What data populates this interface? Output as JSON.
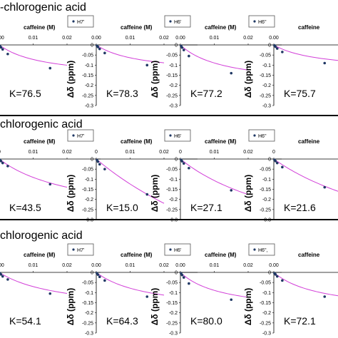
{
  "sections": [
    {
      "title": "-chlorogenic acid"
    },
    {
      "title": "chlorogenic acid"
    },
    {
      "title": "chlorogenic acid"
    }
  ],
  "chart_data": [
    {
      "type": "scatter",
      "section": 0,
      "xlabel": "caffeine (M)",
      "ylabel": "",
      "legend": "H7'",
      "k_label": "K=76.5",
      "xticks": [
        "0.00",
        "0.01",
        "0.02"
      ],
      "yticks": [
        "0",
        "-0.05",
        "-0.1",
        "-0.15",
        "-0.2",
        "-0.25",
        "-0.3"
      ],
      "xlim": [
        0,
        0.02
      ],
      "ylim": [
        -0.3,
        0
      ],
      "points": [
        {
          "x": 0.0002,
          "y": -0.005
        },
        {
          "x": 0.0005,
          "y": -0.012
        },
        {
          "x": 0.001,
          "y": -0.022
        },
        {
          "x": 0.0025,
          "y": -0.045
        },
        {
          "x": 0.015,
          "y": -0.115
        }
      ],
      "fit": {
        "dmax": -0.166,
        "k": 76.5
      }
    },
    {
      "type": "scatter",
      "section": 0,
      "xlabel": "caffeine (M)",
      "ylabel": "Δδ (ppm)",
      "legend": "H6'",
      "k_label": "K=78.3",
      "xticks": [
        "0.00",
        "0.01",
        "0.02"
      ],
      "yticks": [
        "0",
        "-0.05",
        "-0.1",
        "-0.15",
        "-0.2",
        "-0.25",
        "-0.3"
      ],
      "xlim": [
        0,
        0.02
      ],
      "ylim": [
        -0.3,
        0
      ],
      "points": [
        {
          "x": 0.0002,
          "y": -0.004
        },
        {
          "x": 0.0005,
          "y": -0.01
        },
        {
          "x": 0.001,
          "y": -0.02
        },
        {
          "x": 0.0025,
          "y": -0.04
        },
        {
          "x": 0.015,
          "y": -0.1
        }
      ],
      "fit": {
        "dmax": -0.145,
        "k": 78.3
      }
    },
    {
      "type": "scatter",
      "section": 0,
      "xlabel": "caffeine (M)",
      "ylabel": "Δδ (ppm)",
      "legend": "H6''",
      "k_label": "K=77.2",
      "xticks": [
        "0.00",
        "0.01",
        "0.02"
      ],
      "yticks": [
        "0",
        "-0.05",
        "-0.1",
        "-0.15",
        "-0.2",
        "-0.25",
        "-0.3"
      ],
      "xlim": [
        0,
        0.02
      ],
      "ylim": [
        -0.3,
        0
      ],
      "points": [
        {
          "x": 0.0002,
          "y": -0.005
        },
        {
          "x": 0.0005,
          "y": -0.013
        },
        {
          "x": 0.001,
          "y": -0.025
        },
        {
          "x": 0.0025,
          "y": -0.055
        },
        {
          "x": 0.015,
          "y": -0.14
        }
      ],
      "fit": {
        "dmax": -0.205,
        "k": 77.2
      }
    },
    {
      "type": "scatter",
      "section": 0,
      "xlabel": "caffeine",
      "ylabel": "Δδ (ppm)",
      "legend": "H5''",
      "k_label": "K=75.7",
      "xticks": [
        "0.00"
      ],
      "yticks": [
        "0",
        "-0.05",
        "-0.1",
        "-0.15",
        "-0.2",
        "-0.25",
        "-0.3"
      ],
      "xlim": [
        0,
        0.02
      ],
      "ylim": [
        -0.3,
        0
      ],
      "points": [
        {
          "x": 0.0002,
          "y": -0.003
        },
        {
          "x": 0.0005,
          "y": -0.009
        },
        {
          "x": 0.001,
          "y": -0.018
        },
        {
          "x": 0.0025,
          "y": -0.035
        },
        {
          "x": 0.015,
          "y": -0.09
        }
      ],
      "fit": {
        "dmax": -0.13,
        "k": 75.7
      }
    },
    {
      "type": "scatter",
      "section": 1,
      "xlabel": "caffeine (M)",
      "ylabel": "",
      "legend": "H7'",
      "k_label": "K=43.5",
      "xticks": [
        "0",
        "0.01",
        "0.02"
      ],
      "yticks": [
        "0",
        "-0.05",
        "-0.1",
        "-0.15",
        "-0.2",
        "-0.25",
        "-0.3"
      ],
      "xlim": [
        0,
        0.02
      ],
      "ylim": [
        -0.3,
        0
      ],
      "points": [
        {
          "x": 0.0002,
          "y": -0.004
        },
        {
          "x": 0.0005,
          "y": -0.01
        },
        {
          "x": 0.001,
          "y": -0.02
        },
        {
          "x": 0.0025,
          "y": -0.035
        },
        {
          "x": 0.015,
          "y": -0.125
        }
      ],
      "fit": {
        "dmax": -0.3,
        "k": 43.5
      }
    },
    {
      "type": "scatter",
      "section": 1,
      "xlabel": "caffeine (M)",
      "ylabel": "Δδ (ppm)",
      "legend": "H6'",
      "k_label": "K=15.0",
      "xticks": [
        "0",
        "0.01",
        "0.02"
      ],
      "yticks": [
        "0",
        "-0.05",
        "-0.1",
        "-0.15",
        "-0.2",
        "-0.25",
        "-0.3"
      ],
      "xlim": [
        0,
        0.02
      ],
      "ylim": [
        -0.3,
        0
      ],
      "points": [
        {
          "x": 0.0002,
          "y": -0.005
        },
        {
          "x": 0.0005,
          "y": -0.013
        },
        {
          "x": 0.001,
          "y": -0.026
        },
        {
          "x": 0.0025,
          "y": -0.05
        },
        {
          "x": 0.015,
          "y": -0.175
        }
      ],
      "fit": {
        "dmax": -0.95,
        "k": 15.0
      }
    },
    {
      "type": "scatter",
      "section": 1,
      "xlabel": "caffeine (M)",
      "ylabel": "Δδ (ppm)",
      "legend": "H6''",
      "k_label": "K=27.1",
      "xticks": [
        "0",
        "0.01",
        "0.02"
      ],
      "yticks": [
        "0",
        "-0.05",
        "-0.1",
        "-0.15",
        "-0.2",
        "-0.25",
        "-0.3"
      ],
      "xlim": [
        0,
        0.02
      ],
      "ylim": [
        -0.3,
        0
      ],
      "points": [
        {
          "x": 0.0002,
          "y": -0.004
        },
        {
          "x": 0.0005,
          "y": -0.011
        },
        {
          "x": 0.001,
          "y": -0.022
        },
        {
          "x": 0.0025,
          "y": -0.045
        },
        {
          "x": 0.015,
          "y": -0.155
        }
      ],
      "fit": {
        "dmax": -0.5,
        "k": 27.1
      }
    },
    {
      "type": "scatter",
      "section": 1,
      "xlabel": "caffeine",
      "ylabel": "Δδ (ppm)",
      "legend": "H5''",
      "k_label": "K=21.6",
      "xticks": [
        "0"
      ],
      "yticks": [
        "0",
        "-0.05",
        "-0.1",
        "-0.15",
        "-0.2",
        "-0.25",
        "-0.3"
      ],
      "xlim": [
        0,
        0.02
      ],
      "ylim": [
        -0.3,
        0
      ],
      "points": [
        {
          "x": 0.0002,
          "y": -0.004
        },
        {
          "x": 0.0005,
          "y": -0.01
        },
        {
          "x": 0.001,
          "y": -0.02
        },
        {
          "x": 0.0025,
          "y": -0.04
        },
        {
          "x": 0.015,
          "y": -0.14
        }
      ],
      "fit": {
        "dmax": -0.55,
        "k": 21.6
      }
    },
    {
      "type": "scatter",
      "section": 2,
      "xlabel": "caffeine (M)",
      "ylabel": "",
      "legend": "H7'",
      "k_label": "K=54.1",
      "xticks": [
        "0.00",
        "0.01",
        "0.02"
      ],
      "yticks": [
        "0",
        "-0.05",
        "-0.1",
        "-0.15",
        "-0.2",
        "-0.25",
        "-0.3"
      ],
      "xlim": [
        0,
        0.02
      ],
      "ylim": [
        -0.3,
        0
      ],
      "points": [
        {
          "x": 0.0002,
          "y": -0.004
        },
        {
          "x": 0.0005,
          "y": -0.01
        },
        {
          "x": 0.001,
          "y": -0.02
        },
        {
          "x": 0.0025,
          "y": -0.035
        },
        {
          "x": 0.015,
          "y": -0.105
        }
      ],
      "fit": {
        "dmax": -0.2,
        "k": 54.1
      }
    },
    {
      "type": "scatter",
      "section": 2,
      "xlabel": "caffeine (M)",
      "ylabel": "Δδ (ppm)",
      "legend": "H6'",
      "k_label": "K=64.3",
      "xticks": [
        "0.00",
        "0.01",
        "0.02"
      ],
      "yticks": [
        "0",
        "-0.05",
        "-0.1",
        "-0.15",
        "-0.2",
        "-0.25",
        "-0.3"
      ],
      "xlim": [
        0,
        0.02
      ],
      "ylim": [
        -0.3,
        0
      ],
      "points": [
        {
          "x": 0.0002,
          "y": -0.004
        },
        {
          "x": 0.0005,
          "y": -0.011
        },
        {
          "x": 0.001,
          "y": -0.022
        },
        {
          "x": 0.0025,
          "y": -0.04
        },
        {
          "x": 0.015,
          "y": -0.12
        }
      ],
      "fit": {
        "dmax": -0.2,
        "k": 64.3
      }
    },
    {
      "type": "scatter",
      "section": 2,
      "xlabel": "caffeine (M)",
      "ylabel": "Δδ (ppm)",
      "legend": "H6'',",
      "k_label": "K=80.0",
      "xticks": [
        "0.00",
        "0.01",
        "0.02"
      ],
      "yticks": [
        "0",
        "-0.05",
        "-0.1",
        "-0.15",
        "-0.2",
        "-0.25",
        "-0.3"
      ],
      "xlim": [
        0,
        0.02
      ],
      "ylim": [
        -0.3,
        0
      ],
      "points": [
        {
          "x": 0.0002,
          "y": -0.005
        },
        {
          "x": 0.0005,
          "y": -0.013
        },
        {
          "x": 0.001,
          "y": -0.025
        },
        {
          "x": 0.0025,
          "y": -0.055
        },
        {
          "x": 0.015,
          "y": -0.135
        }
      ],
      "fit": {
        "dmax": -0.2,
        "k": 80.0
      }
    },
    {
      "type": "scatter",
      "section": 2,
      "xlabel": "caffeine",
      "ylabel": "Δδ (ppm)",
      "legend": "H5''",
      "k_label": "K=72.1",
      "xticks": [
        "0.00"
      ],
      "yticks": [
        "0",
        "-0.05",
        "-0.1",
        "-0.15",
        "-0.2",
        "-0.25",
        "-0.3"
      ],
      "xlim": [
        0,
        0.02
      ],
      "ylim": [
        -0.3,
        0
      ],
      "points": [
        {
          "x": 0.0002,
          "y": -0.004
        },
        {
          "x": 0.0005,
          "y": -0.01
        },
        {
          "x": 0.001,
          "y": -0.02
        },
        {
          "x": 0.0025,
          "y": -0.04
        },
        {
          "x": 0.015,
          "y": -0.12
        }
      ],
      "fit": {
        "dmax": -0.2,
        "k": 72.1
      }
    }
  ]
}
